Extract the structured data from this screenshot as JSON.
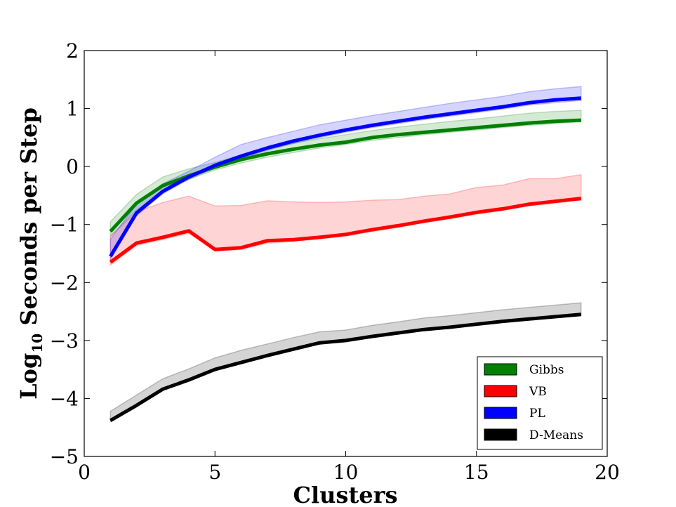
{
  "chart_data": {
    "type": "line",
    "title": "",
    "xlabel": "Clusters",
    "ylabel_main": "Log",
    "ylabel_sub": "10",
    "ylabel_rest": " Seconds per Step",
    "xlim": [
      0,
      20
    ],
    "ylim": [
      -5,
      2
    ],
    "xticks": [
      0,
      5,
      10,
      15,
      20
    ],
    "yticks": [
      2,
      1,
      0,
      -1,
      -2,
      -3,
      -4,
      -5
    ],
    "ytick_labels": [
      "2",
      "1",
      "0",
      "−1",
      "−2",
      "−3",
      "−4",
      "−5"
    ],
    "xtick_labels": [
      "0",
      "5",
      "10",
      "15",
      "20"
    ],
    "grid": false,
    "legend_position": "bottom-right",
    "x": [
      1,
      2,
      3,
      4,
      5,
      6,
      7,
      8,
      9,
      10,
      11,
      12,
      13,
      14,
      15,
      16,
      17,
      18,
      19
    ],
    "series": [
      {
        "name": "Gibbs",
        "color": "#008000",
        "values": [
          -1.12,
          -0.63,
          -0.33,
          -0.16,
          -0.01,
          0.12,
          0.22,
          0.3,
          0.37,
          0.42,
          0.5,
          0.55,
          0.59,
          0.63,
          0.67,
          0.71,
          0.75,
          0.78,
          0.8
        ],
        "band_lower": [
          -1.2,
          -0.75,
          -0.42,
          -0.22,
          -0.06,
          0.06,
          0.16,
          0.24,
          0.32,
          0.38,
          0.45,
          0.5,
          0.55,
          0.59,
          0.63,
          0.67,
          0.71,
          0.74,
          0.77
        ],
        "band_upper": [
          -0.95,
          -0.48,
          -0.18,
          -0.04,
          0.07,
          0.2,
          0.3,
          0.4,
          0.48,
          0.55,
          0.62,
          0.68,
          0.73,
          0.78,
          0.82,
          0.87,
          0.92,
          0.95,
          0.97
        ]
      },
      {
        "name": "VB",
        "color": "#ff0000",
        "values": [
          -1.65,
          -1.32,
          -1.22,
          -1.11,
          -1.43,
          -1.4,
          -1.28,
          -1.26,
          -1.22,
          -1.17,
          -1.09,
          -1.02,
          -0.94,
          -0.87,
          -0.79,
          -0.73,
          -0.65,
          -0.6,
          -0.55
        ],
        "band_lower": [
          -1.7,
          -1.36,
          -1.26,
          -1.15,
          -1.46,
          -1.43,
          -1.32,
          -1.29,
          -1.25,
          -1.2,
          -1.12,
          -1.05,
          -0.97,
          -0.9,
          -0.82,
          -0.76,
          -0.68,
          -0.63,
          -0.58
        ],
        "band_upper": [
          -1.2,
          -0.78,
          -0.62,
          -0.51,
          -0.68,
          -0.67,
          -0.59,
          -0.61,
          -0.62,
          -0.61,
          -0.58,
          -0.57,
          -0.51,
          -0.47,
          -0.36,
          -0.32,
          -0.21,
          -0.21,
          -0.14
        ]
      },
      {
        "name": "PL",
        "color": "#0000ff",
        "values": [
          -1.55,
          -0.8,
          -0.43,
          -0.18,
          0.02,
          0.18,
          0.32,
          0.44,
          0.54,
          0.63,
          0.71,
          0.78,
          0.85,
          0.91,
          0.97,
          1.03,
          1.1,
          1.15,
          1.18
        ],
        "band_lower": [
          -1.6,
          -0.85,
          -0.47,
          -0.22,
          -0.02,
          0.14,
          0.28,
          0.4,
          0.5,
          0.59,
          0.67,
          0.74,
          0.81,
          0.87,
          0.93,
          0.99,
          1.06,
          1.1,
          1.14
        ],
        "band_upper": [
          -1.25,
          -0.65,
          -0.3,
          -0.08,
          0.16,
          0.38,
          0.5,
          0.61,
          0.72,
          0.8,
          0.88,
          0.95,
          1.02,
          1.09,
          1.15,
          1.21,
          1.29,
          1.34,
          1.38
        ]
      },
      {
        "name": "D-Means",
        "color": "#000000",
        "values": [
          -4.38,
          -4.12,
          -3.84,
          -3.68,
          -3.5,
          -3.38,
          -3.26,
          -3.15,
          -3.04,
          -3.0,
          -2.93,
          -2.87,
          -2.81,
          -2.77,
          -2.72,
          -2.67,
          -2.63,
          -2.59,
          -2.55
        ],
        "band_lower": [
          -4.4,
          -4.14,
          -3.86,
          -3.7,
          -3.52,
          -3.4,
          -3.28,
          -3.17,
          -3.06,
          -3.02,
          -2.95,
          -2.89,
          -2.83,
          -2.79,
          -2.74,
          -2.69,
          -2.65,
          -2.61,
          -2.57
        ],
        "band_upper": [
          -4.22,
          -3.94,
          -3.66,
          -3.49,
          -3.3,
          -3.17,
          -3.06,
          -2.95,
          -2.85,
          -2.82,
          -2.74,
          -2.68,
          -2.61,
          -2.57,
          -2.52,
          -2.47,
          -2.43,
          -2.39,
          -2.35
        ]
      }
    ]
  }
}
